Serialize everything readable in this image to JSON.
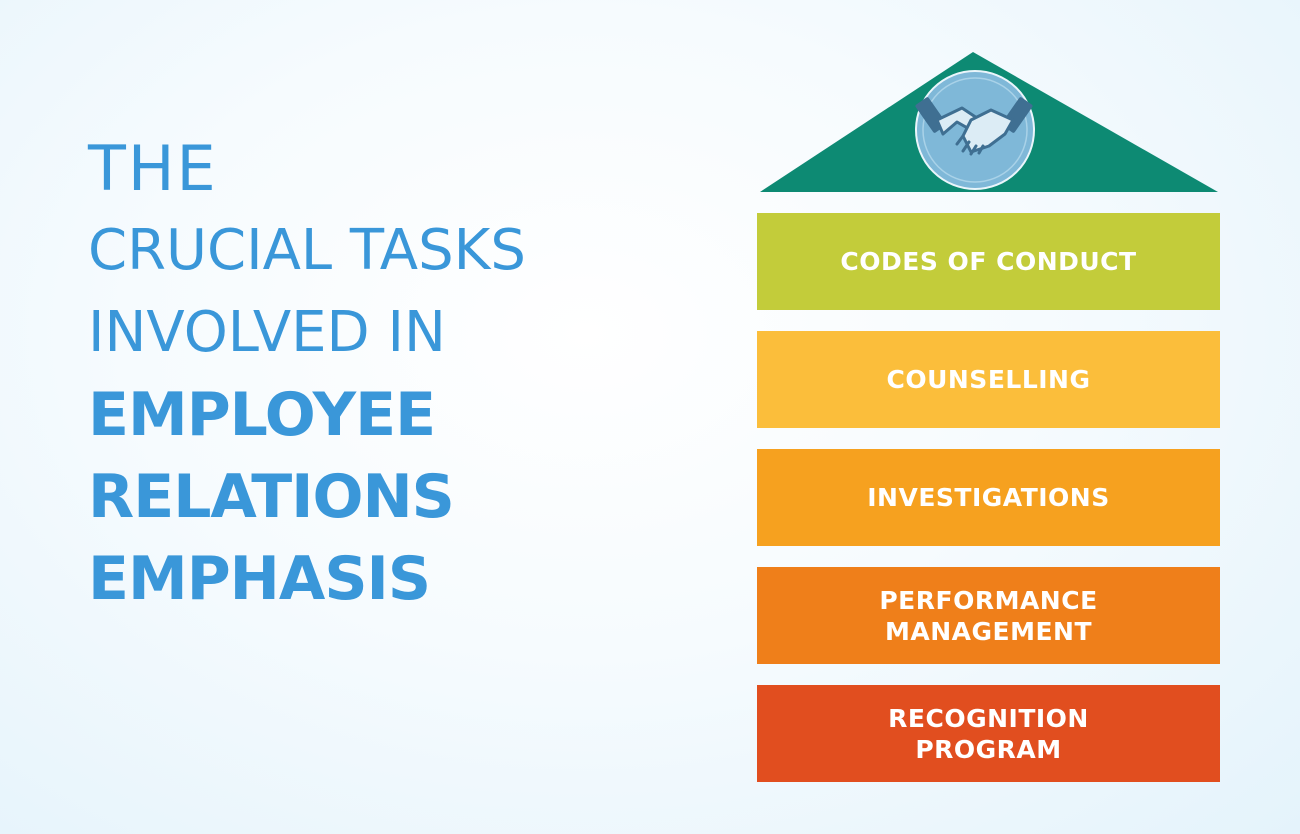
{
  "headline": {
    "line1": "THE",
    "line2": "CRUCIAL TASKS",
    "line3": "INVOLVED IN",
    "line4": "EMPLOYEE",
    "line5": "RELATIONS",
    "line6": "EMPHASIS"
  },
  "colors": {
    "headline": "#3a97d9",
    "roof": "#0d8a73",
    "icon_circle": "#7fb8d8",
    "blocks": [
      "#c3cc3a",
      "#fbbe3b",
      "#f6a11f",
      "#ef7f1a",
      "#e14e1f"
    ]
  },
  "roof_icon": "handshake-icon",
  "tasks": [
    "CODES OF CONDUCT",
    "COUNSELLING",
    "INVESTIGATIONS",
    "PERFORMANCE\nMANAGEMENT",
    "RECOGNITION\nPROGRAM"
  ]
}
